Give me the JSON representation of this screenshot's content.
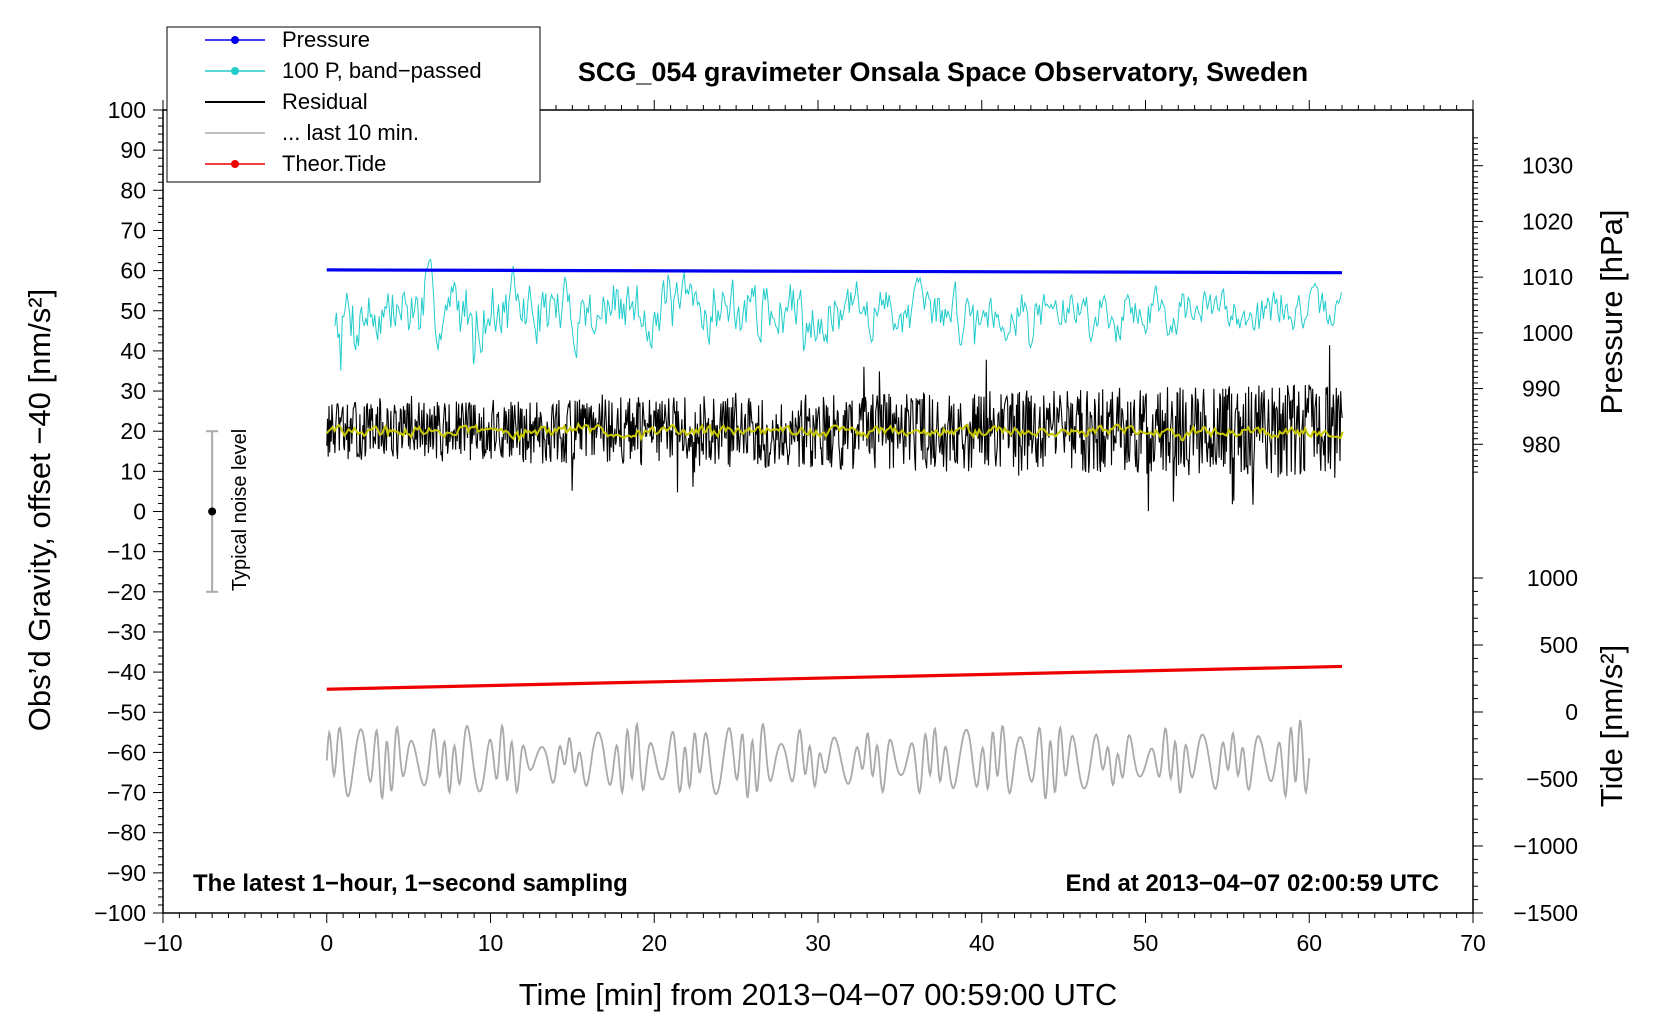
{
  "chart_data": {
    "type": "line",
    "title": "SCG_054 gravimeter Onsala Space Observatory, Sweden",
    "xlabel": "Time [min] from 2013−04−07 00:59:00 UTC",
    "ylabel_left": "Obs’d Gravity, offset −40 [nm/s²]",
    "ylabel_right_top": "Pressure [hPa]",
    "ylabel_right_bottom": "Tide [nm/s²]",
    "xlim": [
      -10,
      70
    ],
    "ylim_left": [
      -100,
      100
    ],
    "ylim_pressure": [
      970,
      1040
    ],
    "ylim_tide": [
      -1500,
      1000
    ],
    "x_ticks": [
      -10,
      0,
      10,
      20,
      30,
      40,
      50,
      60,
      70
    ],
    "x_tick_labels": [
      "−10",
      "0",
      "10",
      "20",
      "30",
      "40",
      "50",
      "60",
      "70"
    ],
    "y_left_ticks": [
      100,
      90,
      80,
      70,
      60,
      50,
      40,
      30,
      20,
      10,
      0,
      -10,
      -20,
      -30,
      -40,
      -50,
      -60,
      -70,
      -80,
      -90,
      -100
    ],
    "y_left_tick_labels": [
      "100",
      "90",
      "80",
      "70",
      "60",
      "50",
      "40",
      "30",
      "20",
      "10",
      "0",
      "−10",
      "−20",
      "−30",
      "−40",
      "−50",
      "−60",
      "−70",
      "−80",
      "−90",
      "−100"
    ],
    "y_pressure_ticks": [
      1030,
      1020,
      1010,
      1000,
      990,
      980
    ],
    "y_pressure_tick_labels": [
      "1030",
      "1020",
      "1010",
      "1000",
      "990",
      "980"
    ],
    "y_tide_ticks": [
      1000,
      500,
      0,
      -500,
      -1000,
      -1500
    ],
    "y_tide_tick_labels": [
      "1000",
      "500",
      "0",
      "−500",
      "−1000",
      "−1500"
    ],
    "legend": {
      "position": "top-left",
      "entries": [
        {
          "label": "Pressure",
          "color": "#0000ee",
          "marker": true
        },
        {
          "label": "100 P, band−passed",
          "color": "#22cccc",
          "marker": true
        },
        {
          "label": "Residual",
          "color": "#000000",
          "marker": false
        },
        {
          "label": "... last 10 min.",
          "color": "#aaaaaa",
          "marker": false
        },
        {
          "label": "Theor.Tide",
          "color": "#ee0000",
          "marker": true
        }
      ]
    },
    "annotations": {
      "bottom_left": "The latest 1−hour, 1−second sampling",
      "bottom_right": "End at 2013−04−07 02:00:59 UTC",
      "noise_label": "Typical noise level",
      "noise_bar": {
        "x": -7,
        "low": -20,
        "high": 20,
        "center": 0
      }
    },
    "series": [
      {
        "name": "Pressure",
        "axis": "pressure",
        "color": "#0000ee",
        "x_range": [
          0,
          62
        ],
        "start": 1011.3,
        "end": 1010.8
      },
      {
        "name": "100 P, band-passed",
        "axis": "left",
        "color": "#22cccc",
        "x_range": [
          0.5,
          62
        ],
        "center": 50,
        "amplitude_start": 10,
        "amplitude_end": 5
      },
      {
        "name": "Residual",
        "axis": "left",
        "color": "#000000",
        "x_range": [
          0,
          62
        ],
        "center": 20,
        "amplitude_start": 7,
        "amplitude_end": 12
      },
      {
        "name": "Residual smoothed",
        "axis": "left",
        "color": "#c8c800",
        "x_range": [
          0,
          62
        ],
        "center": 20,
        "amplitude_start": 1.5,
        "amplitude_end": 1.5
      },
      {
        "name": "... last 10 min.",
        "axis": "left",
        "color": "#aaaaaa",
        "x_range": [
          0,
          60
        ],
        "center": -62,
        "amplitude_start": 8,
        "amplitude_end": 8
      },
      {
        "name": "Theor.Tide",
        "axis": "tide",
        "color": "#ee0000",
        "x_range": [
          0,
          62
        ],
        "start": 170,
        "end": 340
      }
    ]
  }
}
